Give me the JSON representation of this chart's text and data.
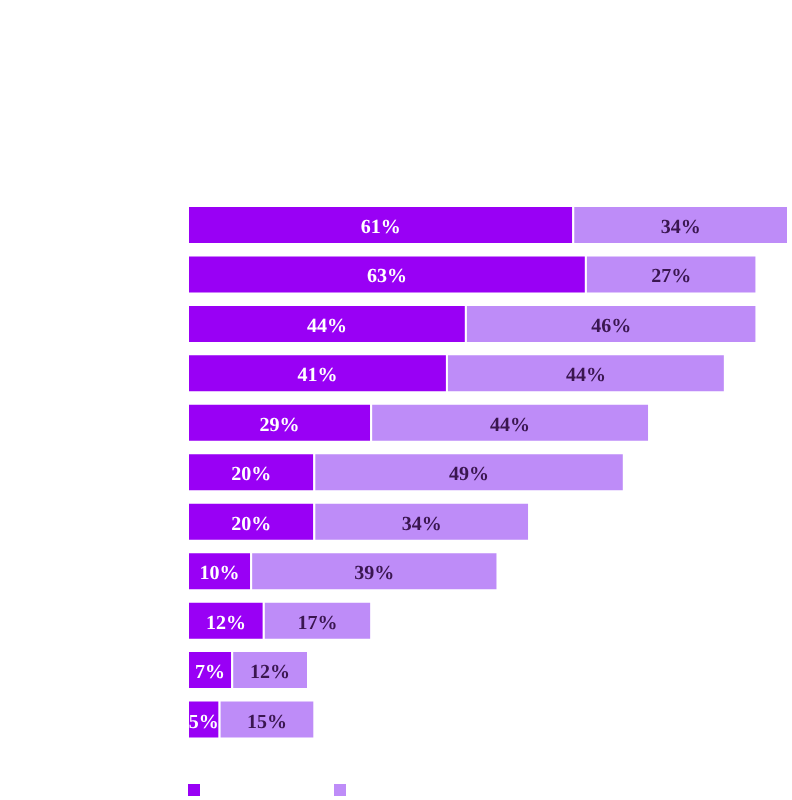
{
  "chart_data": {
    "type": "bar",
    "orientation": "horizontal",
    "stacked": true,
    "categories": [
      null,
      null,
      null,
      null,
      null,
      null,
      null,
      null,
      null,
      null,
      null
    ],
    "series": [
      {
        "color": "#9900f5",
        "values": [
          61,
          63,
          44,
          41,
          29,
          20,
          20,
          10,
          12,
          7,
          5
        ],
        "value_labels": [
          "61%",
          "63%",
          "44%",
          "41%",
          "29%",
          "20%",
          "20%",
          "10%",
          "12%",
          "7%",
          "5%"
        ]
      },
      {
        "color": "#be8cf8",
        "values": [
          34,
          27,
          46,
          44,
          44,
          49,
          34,
          39,
          17,
          12,
          15
        ],
        "value_labels": [
          "34%",
          "27%",
          "46%",
          "44%",
          "44%",
          "49%",
          "34%",
          "39%",
          "17%",
          "12%",
          "15%"
        ]
      }
    ]
  }
}
